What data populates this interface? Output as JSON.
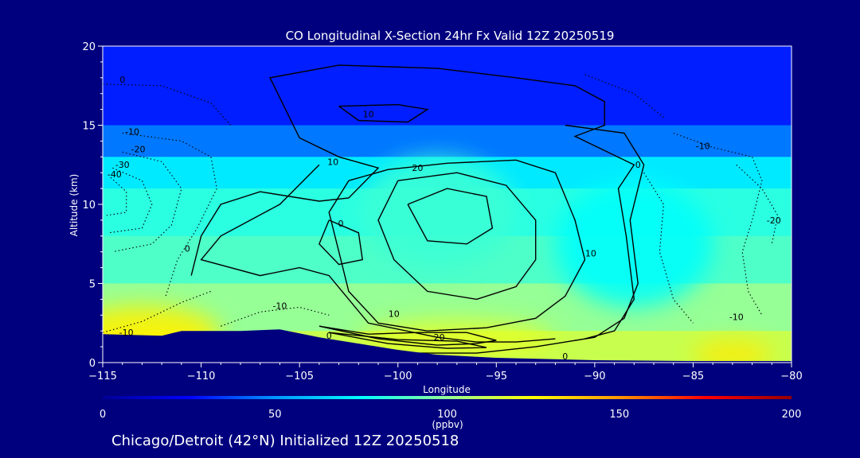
{
  "chart_data": {
    "type": "heatmap",
    "title": "CO Longitudinal X-Section 24hr  Fx Valid 12Z 20250519",
    "xlabel": "Longitude",
    "ylabel": "Altitude (km)",
    "xlim": [
      -115,
      -80
    ],
    "ylim": [
      0,
      20
    ],
    "x_ticks": [
      -115,
      -110,
      -105,
      -100,
      -95,
      -90,
      -85,
      -80
    ],
    "y_ticks": [
      0,
      5,
      10,
      15,
      20
    ],
    "colorbar": {
      "min": 0,
      "max": 200,
      "ticks": [
        0,
        50,
        100,
        150,
        200
      ],
      "label": "(ppbv)",
      "colors": [
        "#000096",
        "#0000ff",
        "#0096ff",
        "#00ffff",
        "#96ff96",
        "#ffff00",
        "#ff9600",
        "#ff0000",
        "#960000"
      ]
    },
    "background_bands": [
      {
        "y0": 15,
        "y1": 20,
        "value": 30
      },
      {
        "y0": 13,
        "y1": 15,
        "value": 45
      },
      {
        "y0": 11,
        "y1": 13,
        "value": 70
      },
      {
        "y0": 8,
        "y1": 11,
        "value": 82
      },
      {
        "y0": 5,
        "y1": 8,
        "value": 88
      },
      {
        "y0": 2,
        "y1": 5,
        "value": 100
      },
      {
        "y0": 0,
        "y1": 2,
        "value": 112
      }
    ],
    "field_features": [
      {
        "lon": -113,
        "alt": 1.8,
        "rx": 4,
        "ry": 1.8,
        "value": 128
      },
      {
        "lon": -97,
        "alt": 1.5,
        "rx": 5,
        "ry": 1.2,
        "value": 118
      },
      {
        "lon": -98,
        "alt": 9.5,
        "rx": 4,
        "ry": 3.5,
        "value": 85
      },
      {
        "lon": -88,
        "alt": 7.5,
        "rx": 4,
        "ry": 4,
        "value": 76
      },
      {
        "lon": -83,
        "alt": 0.5,
        "rx": 2,
        "ry": 0.8,
        "value": 130
      }
    ],
    "terrain": [
      [
        -115,
        1.8
      ],
      [
        -112,
        1.7
      ],
      [
        -111,
        2.0
      ],
      [
        -108,
        2.0
      ],
      [
        -106,
        2.1
      ],
      [
        -104,
        1.6
      ],
      [
        -102,
        1.2
      ],
      [
        -100,
        0.8
      ],
      [
        -98,
        0.5
      ],
      [
        -95,
        0.3
      ],
      [
        -90,
        0.15
      ],
      [
        -85,
        0.1
      ],
      [
        -80,
        0.1
      ]
    ],
    "contours_solid": [
      {
        "label": "0",
        "points": [
          [
            -110.5,
            5.5
          ],
          [
            -110,
            8
          ],
          [
            -109,
            10
          ],
          [
            -107,
            10.8
          ],
          [
            -104,
            10.2
          ],
          [
            -102.5,
            10.4
          ],
          [
            -101,
            12.3
          ],
          [
            -103,
            13
          ],
          [
            -105,
            14.2
          ],
          [
            -106.5,
            18
          ],
          [
            -103,
            18.8
          ],
          [
            -98,
            18.6
          ],
          [
            -94,
            18
          ],
          [
            -91,
            17.5
          ],
          [
            -89.5,
            16.5
          ],
          [
            -89.5,
            15
          ],
          [
            -91,
            14.3
          ],
          [
            -88,
            12.5
          ],
          [
            -88.8,
            11
          ],
          [
            -88.4,
            8
          ],
          [
            -88,
            4
          ],
          [
            -89,
            2
          ],
          [
            -90.5,
            1.5
          ]
        ]
      },
      {
        "label": "",
        "points": [
          [
            -91.5,
            15
          ],
          [
            -88.5,
            14.5
          ],
          [
            -87.5,
            12.5
          ],
          [
            -88.2,
            9
          ],
          [
            -87.8,
            5
          ],
          [
            -88.5,
            2.8
          ],
          [
            -90,
            1.6
          ],
          [
            -93,
            1
          ],
          [
            -96,
            0.6
          ],
          [
            -99,
            0.6
          ],
          [
            -102,
            1.1
          ],
          [
            -104,
            1.5
          ]
        ]
      },
      {
        "label": "10",
        "points": [
          [
            -104,
            12.5
          ],
          [
            -106,
            10
          ],
          [
            -109,
            8
          ],
          [
            -110,
            6.5
          ],
          [
            -107,
            5.5
          ],
          [
            -105,
            6
          ],
          [
            -103.5,
            5.5
          ],
          [
            -102.5,
            4
          ],
          [
            -101.5,
            2.5
          ],
          [
            -98,
            1.6
          ],
          [
            -96,
            1.3
          ],
          [
            -94,
            1.3
          ],
          [
            -92,
            1.5
          ]
        ]
      },
      {
        "label": "20",
        "points": [
          [
            -102.5,
            11.5
          ],
          [
            -100.5,
            12.2
          ],
          [
            -97.5,
            12.6
          ],
          [
            -94,
            12.8
          ],
          [
            -92,
            12
          ],
          [
            -91.5,
            10.5
          ],
          [
            -91,
            9
          ],
          [
            -90.5,
            6.5
          ],
          [
            -91.5,
            4.2
          ],
          [
            -93,
            2.8
          ],
          [
            -95.5,
            2.2
          ],
          [
            -98.5,
            2
          ],
          [
            -101,
            2.5
          ],
          [
            -102.5,
            4.5
          ],
          [
            -103,
            7
          ],
          [
            -103.5,
            9.5
          ],
          [
            -102.5,
            11.5
          ]
        ]
      },
      {
        "label": "",
        "points": [
          [
            -100,
            11.5
          ],
          [
            -97,
            12
          ],
          [
            -94.5,
            11.2
          ],
          [
            -93,
            9
          ],
          [
            -93,
            6.5
          ],
          [
            -94,
            4.8
          ],
          [
            -96,
            4
          ],
          [
            -98.5,
            4.5
          ],
          [
            -100.2,
            6.5
          ],
          [
            -101,
            9
          ],
          [
            -100,
            11.5
          ]
        ]
      },
      {
        "label": "0",
        "points": [
          [
            -103.5,
            9
          ],
          [
            -102,
            8.2
          ],
          [
            -101.8,
            6.5
          ],
          [
            -103,
            6.2
          ],
          [
            -104,
            7.5
          ],
          [
            -103.5,
            9
          ]
        ]
      },
      {
        "label": "",
        "points": [
          [
            -99.5,
            10
          ],
          [
            -97.5,
            11
          ],
          [
            -95.5,
            10.5
          ],
          [
            -95.2,
            8.5
          ],
          [
            -96.5,
            7.5
          ],
          [
            -98.5,
            7.7
          ],
          [
            -99.5,
            10
          ]
        ]
      },
      {
        "label": "10",
        "points": [
          [
            -103,
            16.2
          ],
          [
            -100,
            16.3
          ],
          [
            -98.5,
            16
          ],
          [
            -99.5,
            15.2
          ],
          [
            -102,
            15.3
          ],
          [
            -103,
            16.2
          ]
        ]
      },
      {
        "label": "20",
        "points": [
          [
            -104,
            2.3
          ],
          [
            -101,
            1.5
          ],
          [
            -98,
            1.1
          ],
          [
            -96,
            1.2
          ],
          [
            -95,
            1.4
          ],
          [
            -96.5,
            1.9
          ],
          [
            -99,
            1.9
          ],
          [
            -101.5,
            1.8
          ],
          [
            -104,
            2.3
          ]
        ]
      },
      {
        "label": "",
        "points": [
          [
            -103.5,
            1.9
          ],
          [
            -100.5,
            1.2
          ],
          [
            -97.5,
            0.9
          ],
          [
            -95.5,
            0.95
          ],
          [
            -97,
            1.35
          ],
          [
            -100,
            1.45
          ],
          [
            -103.5,
            1.9
          ]
        ]
      }
    ],
    "contours_dashed": [
      {
        "label": "0",
        "points": [
          [
            -115,
            17.6
          ],
          [
            -112,
            17.5
          ],
          [
            -109.5,
            16.4
          ],
          [
            -108.5,
            15
          ]
        ]
      },
      {
        "label": "-10",
        "points": [
          [
            -114,
            14.5
          ],
          [
            -111,
            14
          ],
          [
            -109.5,
            13
          ],
          [
            -109.2,
            11
          ],
          [
            -110.2,
            8.5
          ],
          [
            -111.2,
            6.5
          ],
          [
            -111.8,
            4.2
          ]
        ]
      },
      {
        "label": "-20",
        "points": [
          [
            -114,
            13.3
          ],
          [
            -112,
            12.7
          ],
          [
            -111,
            11
          ],
          [
            -111.5,
            8.7
          ],
          [
            -112.5,
            7.5
          ],
          [
            -114.5,
            7
          ]
        ]
      },
      {
        "label": "-30",
        "points": [
          [
            -114.5,
            12.3
          ],
          [
            -113,
            11.5
          ],
          [
            -112.5,
            10
          ],
          [
            -113,
            8.5
          ],
          [
            -114.7,
            8.2
          ]
        ]
      },
      {
        "label": "-40",
        "points": [
          [
            -114.6,
            11.7
          ],
          [
            -113.8,
            10.8
          ],
          [
            -113.8,
            9.5
          ],
          [
            -114.8,
            9.3
          ]
        ]
      },
      {
        "label": "-10",
        "points": [
          [
            -115,
            1.9
          ],
          [
            -113,
            2.6
          ],
          [
            -111,
            3.8
          ],
          [
            -109.5,
            4.5
          ]
        ]
      },
      {
        "label": "-10",
        "points": [
          [
            -109,
            2.3
          ],
          [
            -107,
            3.2
          ],
          [
            -105,
            3.5
          ],
          [
            -103.5,
            3
          ]
        ]
      },
      {
        "label": "-10",
        "points": [
          [
            -86,
            14.5
          ],
          [
            -84,
            13.6
          ],
          [
            -82,
            13
          ],
          [
            -81.5,
            11.5
          ],
          [
            -82,
            9
          ],
          [
            -82.5,
            7
          ],
          [
            -82.2,
            4.5
          ],
          [
            -81.5,
            3
          ]
        ]
      },
      {
        "label": "-20",
        "points": [
          [
            -82.8,
            12.5
          ],
          [
            -81.5,
            11
          ],
          [
            -80.7,
            9.3
          ],
          [
            -81,
            7.5
          ]
        ]
      },
      {
        "label": "",
        "points": [
          [
            -87.5,
            12
          ],
          [
            -86.5,
            10
          ],
          [
            -86.7,
            7
          ],
          [
            -86,
            4
          ],
          [
            -85,
            2.5
          ]
        ]
      },
      {
        "label": "",
        "points": [
          [
            -90.5,
            18.2
          ],
          [
            -88,
            17
          ],
          [
            -86.5,
            15.5
          ]
        ]
      }
    ],
    "labels_shown": [
      {
        "text": "0",
        "lon": -114,
        "alt": 17.7
      },
      {
        "text": "-10",
        "lon": -113.5,
        "alt": 14.4
      },
      {
        "text": "-20",
        "lon": -113.2,
        "alt": 13.3
      },
      {
        "text": "-30",
        "lon": -114,
        "alt": 12.3
      },
      {
        "text": "-40",
        "lon": -114.4,
        "alt": 11.7
      },
      {
        "text": "0",
        "lon": -110.7,
        "alt": 7
      },
      {
        "text": "-10",
        "lon": -113.8,
        "alt": 1.7
      },
      {
        "text": "-10",
        "lon": -106,
        "alt": 3.4
      },
      {
        "text": "10",
        "lon": -101.5,
        "alt": 15.5
      },
      {
        "text": "10",
        "lon": -103.3,
        "alt": 12.5
      },
      {
        "text": "20",
        "lon": -99,
        "alt": 12.1
      },
      {
        "text": "0",
        "lon": -102.9,
        "alt": 8.6
      },
      {
        "text": "0",
        "lon": -87.8,
        "alt": 12.3
      },
      {
        "text": "10",
        "lon": -90.2,
        "alt": 6.7
      },
      {
        "text": "10",
        "lon": -100.2,
        "alt": 2.9
      },
      {
        "text": "0",
        "lon": -103.5,
        "alt": 1.5
      },
      {
        "text": "20",
        "lon": -97.9,
        "alt": 1.4
      },
      {
        "text": "0",
        "lon": -91.5,
        "alt": 0.2
      },
      {
        "text": "-10",
        "lon": -84.5,
        "alt": 13.5
      },
      {
        "text": "-20",
        "lon": -80.9,
        "alt": 8.8
      },
      {
        "text": "-10",
        "lon": -82.8,
        "alt": 2.7
      }
    ]
  },
  "footer": {
    "caption": "Chicago/Detroit (42°N) Initialized 12Z 20250518"
  }
}
